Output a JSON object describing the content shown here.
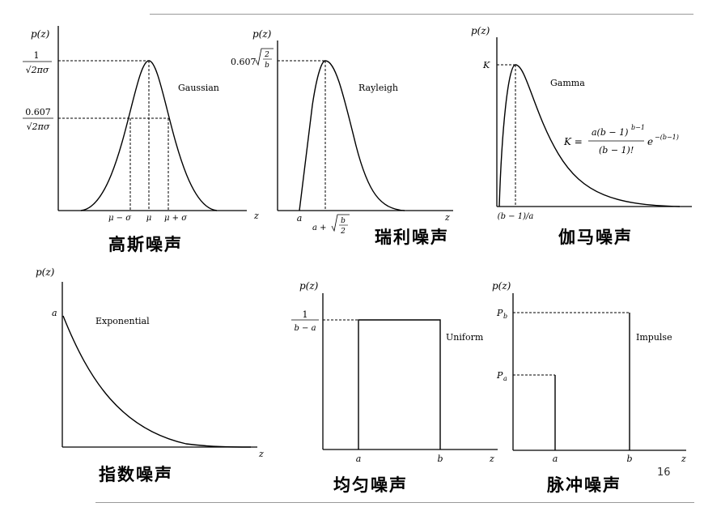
{
  "captions": {
    "gaussian": "高斯噪声",
    "rayleigh": "瑞利噪声",
    "gamma": "伽马噪声",
    "exponential": "指数噪声",
    "uniform": "均匀噪声",
    "impulse": "脉冲噪声"
  },
  "slide_number": "16",
  "labels": {
    "pz": "p(z)",
    "z": "z",
    "gaussian_name": "Gaussian",
    "rayleigh_name": "Rayleigh",
    "gamma_name": "Gamma",
    "exponential_name": "Exponential",
    "uniform_name": "Uniform",
    "impulse_name": "Impulse",
    "g_num1": "1",
    "g_den": "√2πσ",
    "g_num2": "0.607",
    "g_mu_minus": "μ − σ",
    "g_mu": "μ",
    "g_mu_plus": "μ + σ",
    "r_peak": "0.607",
    "r_peak_root_num": "2",
    "r_peak_root_den": "b",
    "r_a": "a",
    "r_x_label": "a +",
    "r_x_root_num": "b",
    "r_x_root_den": "2",
    "gm_K": "K",
    "gm_x": "(b − 1)/a",
    "gm_formula_lhs": "K =",
    "gm_formula_num": "a(b − 1)",
    "gm_formula_num_exp": "b−1",
    "gm_formula_den": "(b − 1)!",
    "gm_formula_e": "e",
    "gm_formula_e_exp": "−(b−1)",
    "e_a": "a",
    "u_num": "1",
    "u_den": "b − a",
    "u_a": "a",
    "u_b": "b",
    "i_pb": "P",
    "i_pb_sub": "b",
    "i_pa": "P",
    "i_pa_sub": "a",
    "i_a": "a",
    "i_b": "b"
  }
}
